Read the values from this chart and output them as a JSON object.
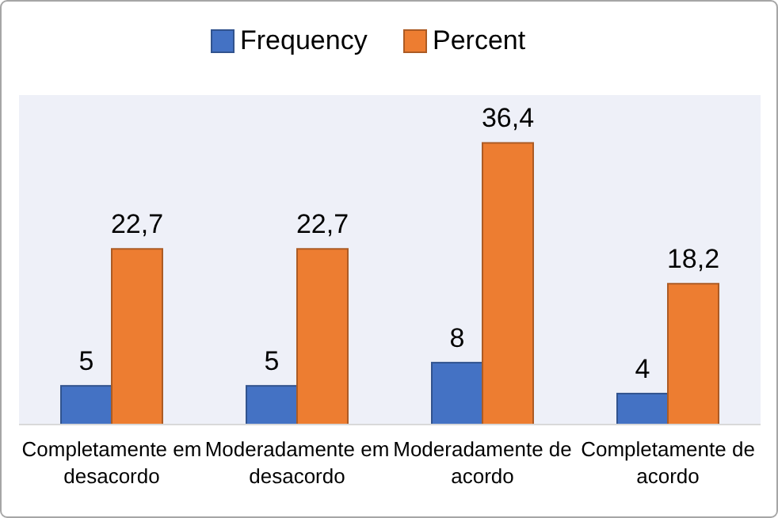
{
  "chart_data": {
    "type": "bar",
    "categories": [
      "Completamente em desacordo",
      "Moderadamente em desacordo",
      "Moderadamente de acordo",
      "Completamente de acordo"
    ],
    "series": [
      {
        "name": "Frequency",
        "color": "#4472c4",
        "values": [
          5,
          5,
          8,
          4
        ],
        "value_labels": [
          "5",
          "5",
          "8",
          "4"
        ]
      },
      {
        "name": "Percent",
        "color": "#ed7d31",
        "values": [
          22.7,
          22.7,
          36.4,
          18.2
        ],
        "value_labels": [
          "22,7",
          "22,7",
          "36,4",
          "18,2"
        ]
      }
    ],
    "legend": "top",
    "grid": false
  }
}
